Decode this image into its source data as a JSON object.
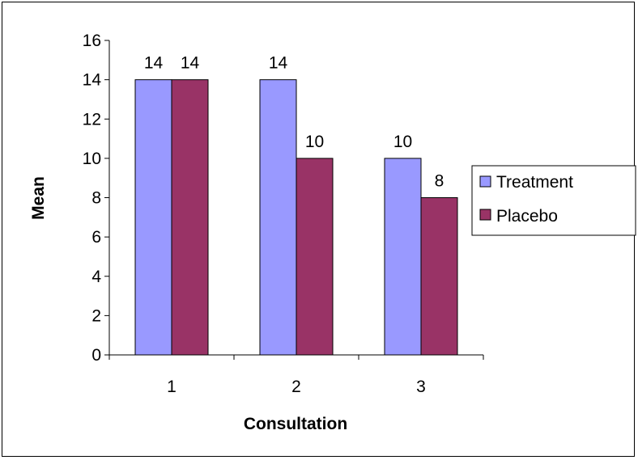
{
  "chart_data": {
    "type": "bar",
    "title": "",
    "xlabel": "Consultation",
    "ylabel": "Mean",
    "categories": [
      "1",
      "2",
      "3"
    ],
    "series": [
      {
        "name": "Treatment",
        "values": [
          14,
          14,
          10
        ],
        "color": "#9999ff"
      },
      {
        "name": "Placebo",
        "values": [
          14,
          10,
          8
        ],
        "color": "#993366"
      }
    ],
    "ylim": [
      0,
      16
    ],
    "yticks": [
      "0",
      "2",
      "4",
      "6",
      "8",
      "10",
      "12",
      "14",
      "16"
    ],
    "data_labels": true,
    "grid": false,
    "legend": "right"
  }
}
